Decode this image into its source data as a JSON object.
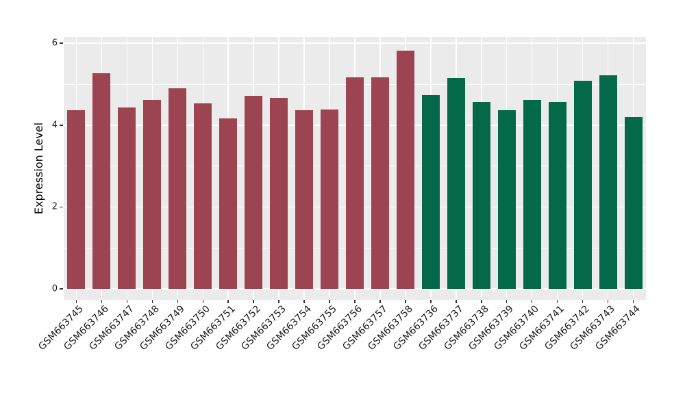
{
  "chart_data": {
    "type": "bar",
    "title": "",
    "xlabel": "",
    "ylabel": "Expression Level",
    "ylim": [
      0,
      6.15
    ],
    "yticks": [
      0,
      2,
      4,
      6
    ],
    "yticks_minor": [
      1,
      3,
      5
    ],
    "grid": true,
    "legend_position": "none",
    "categories": [
      "GSM663745",
      "GSM663746",
      "GSM663747",
      "GSM663748",
      "GSM663749",
      "GSM663750",
      "GSM663751",
      "GSM663752",
      "GSM663753",
      "GSM663754",
      "GSM663755",
      "GSM663756",
      "GSM663757",
      "GSM663758",
      "GSM663736",
      "GSM663737",
      "GSM663738",
      "GSM663739",
      "GSM663740",
      "GSM663741",
      "GSM663742",
      "GSM663743",
      "GSM663744"
    ],
    "values": [
      4.37,
      5.26,
      4.43,
      4.61,
      4.9,
      4.53,
      4.17,
      4.72,
      4.67,
      4.37,
      4.38,
      5.17,
      5.16,
      5.82,
      4.74,
      5.15,
      4.57,
      4.37,
      4.61,
      4.56,
      5.08,
      5.22,
      4.2
    ],
    "groups": [
      "red",
      "red",
      "red",
      "red",
      "red",
      "red",
      "red",
      "red",
      "red",
      "red",
      "red",
      "red",
      "red",
      "red",
      "green",
      "green",
      "green",
      "green",
      "green",
      "green",
      "green",
      "green",
      "green"
    ],
    "group_colors": {
      "red": "#9C4452",
      "green": "#046948"
    },
    "panel_background": "#EBEBEB",
    "gridline_color": "#FFFFFF",
    "axis_text_color": "#1a1a1a",
    "tick_mark_color": "#333333"
  }
}
